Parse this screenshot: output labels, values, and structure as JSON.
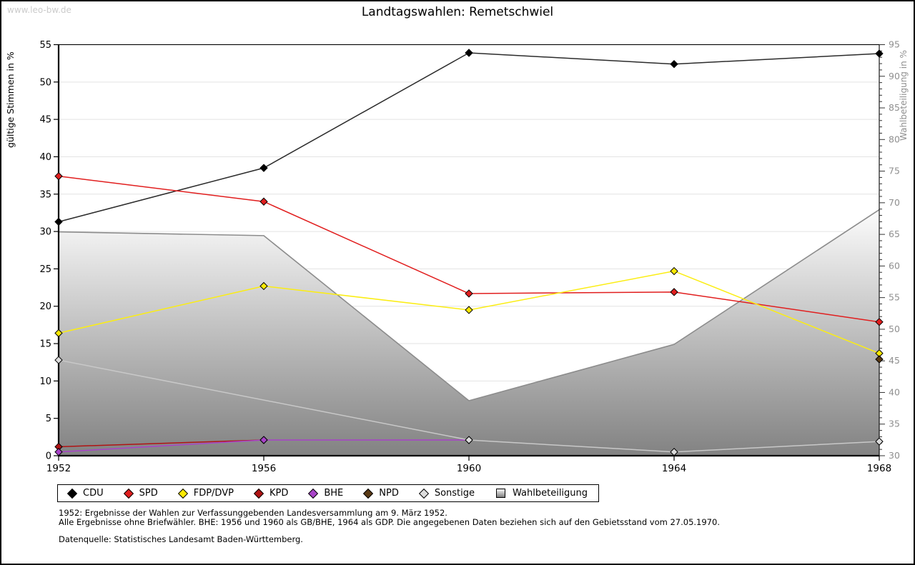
{
  "window": {
    "watermark": "www.leo-bw.de",
    "title": "Landtagswahlen: Remetschwiel"
  },
  "chart_data": {
    "type": "line",
    "title": "Landtagswahlen: Remetschwiel",
    "x": [
      1952,
      1956,
      1960,
      1964,
      1968
    ],
    "y_left": {
      "label": "gültige Stimmen in %",
      "min": 0,
      "max": 55,
      "tick_step": 5
    },
    "y_right": {
      "label": "Wahlbeteiligung in %",
      "min": 30,
      "max": 95,
      "tick_step": 5,
      "minor_tick_step": 1
    },
    "grid": "horizontal",
    "legend_position": "bottom",
    "series": [
      {
        "name": "CDU",
        "axis": "left",
        "marker_color": "#000000",
        "line_color": "#2b2b2b",
        "values": [
          31.3,
          38.5,
          53.9,
          52.4,
          53.8
        ]
      },
      {
        "name": "SPD",
        "axis": "left",
        "marker_color": "#e11e1e",
        "line_color": "#e11e1e",
        "values": [
          37.4,
          34.0,
          21.7,
          21.9,
          17.9
        ]
      },
      {
        "name": "FDP/DVP",
        "axis": "left",
        "marker_color": "#fce903",
        "line_color": "#fbed13",
        "values": [
          16.4,
          22.7,
          19.5,
          24.7,
          13.7
        ]
      },
      {
        "name": "KPD",
        "axis": "left",
        "marker_color": "#b01313",
        "line_color": "#b01313",
        "values": [
          1.2,
          2.1,
          null,
          null,
          null
        ]
      },
      {
        "name": "BHE",
        "axis": "left",
        "marker_color": "#a843c8",
        "line_color": "#a843c8",
        "values": [
          0.5,
          2.1,
          2.1,
          null,
          null
        ]
      },
      {
        "name": "NPD",
        "axis": "left",
        "marker_color": "#5a3a14",
        "line_color": "#5a3a14",
        "values": [
          null,
          null,
          null,
          null,
          12.9
        ]
      },
      {
        "name": "Sonstige",
        "axis": "left",
        "marker_color": "#dcdcdc",
        "line_color": "#c8c8c8",
        "values": [
          12.8,
          null,
          2.1,
          0.5,
          1.9
        ]
      }
    ],
    "area_series": {
      "name": "Wahlbeteiligung",
      "axis": "right",
      "values": [
        65.4,
        64.8,
        38.7,
        47.6,
        68.9
      ],
      "fill_top": "#fcfcfc",
      "fill_bottom": "#828282",
      "edge_color": "#8c8c8c"
    },
    "colors": {
      "gridline": "#e3e3e3",
      "axis": "#000000",
      "right_axis_text": "#8f8f8f"
    }
  },
  "footnotes": {
    "line1": "1952: Ergebnisse der Wahlen zur Verfassunggebenden Landesversammlung am 9. März 1952.",
    "line2": "Alle Ergebnisse ohne Briefwähler. BHE: 1956 und 1960 als GB/BHE, 1964 als GDP. Die angegebenen Daten beziehen sich auf den Gebietsstand vom 27.05.1970.",
    "source": "Datenquelle: Statistisches Landesamt Baden-Württemberg."
  }
}
